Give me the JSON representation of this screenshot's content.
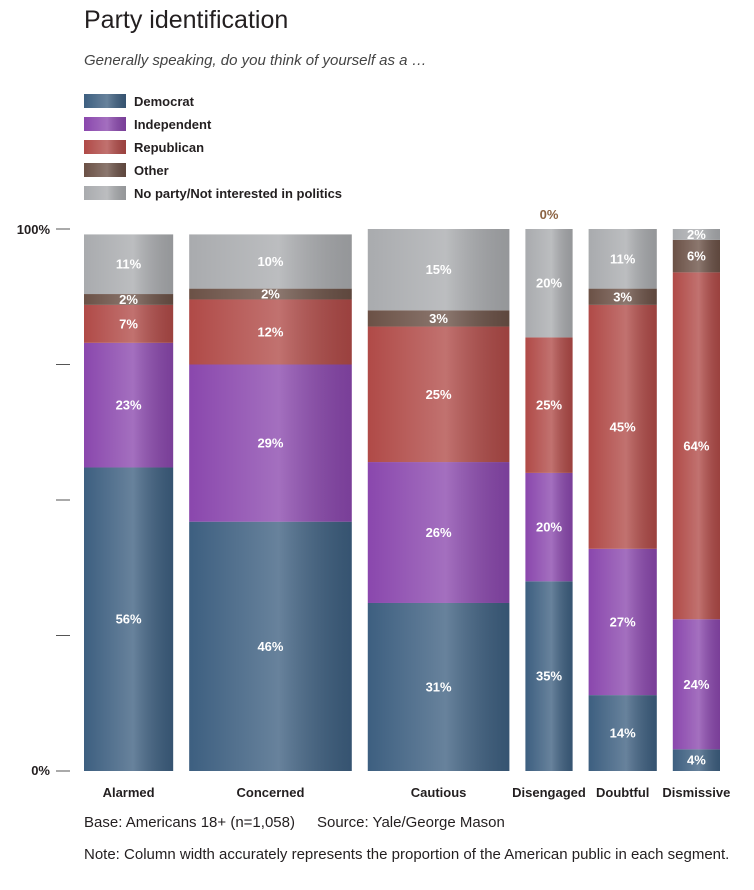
{
  "title": "Party identification",
  "subtitle": "Generally speaking, do you think of yourself as a …",
  "footer": {
    "base": "Base: Americans 18+ (n=1,058)",
    "source": "Source: Yale/George Mason",
    "note": "Note: Column width accurately represents the proportion of the American public in each segment."
  },
  "chart_data": {
    "type": "bar",
    "stacked": true,
    "variable_width": true,
    "title": "Party identification",
    "subtitle": "Generally speaking, do you think of yourself as a …",
    "y_ticks": [
      "100%",
      "0%"
    ],
    "ylim": [
      0,
      100
    ],
    "categories": [
      "Alarmed",
      "Concerned",
      "Cautious",
      "Disengaged",
      "Doubtful",
      "Dismissive"
    ],
    "column_width_share": [
      17,
      31,
      27,
      9,
      13,
      9
    ],
    "legend_position": "top-left",
    "series": [
      {
        "name": "Democrat",
        "color": "#3d5f80",
        "values": [
          56,
          46,
          31,
          35,
          14,
          4
        ]
      },
      {
        "name": "Independent",
        "color": "#8a47ad",
        "values": [
          23,
          29,
          26,
          20,
          27,
          24
        ]
      },
      {
        "name": "Republican",
        "color": "#b04a47",
        "values": [
          7,
          12,
          25,
          25,
          45,
          64
        ]
      },
      {
        "name": "Other",
        "color": "#6b5146",
        "values": [
          2,
          2,
          3,
          0,
          3,
          6
        ]
      },
      {
        "name": "No party/Not interested in politics",
        "color": "#a9abae",
        "values": [
          11,
          10,
          15,
          20,
          11,
          2
        ]
      }
    ],
    "annotations": [
      "0%"
    ]
  }
}
